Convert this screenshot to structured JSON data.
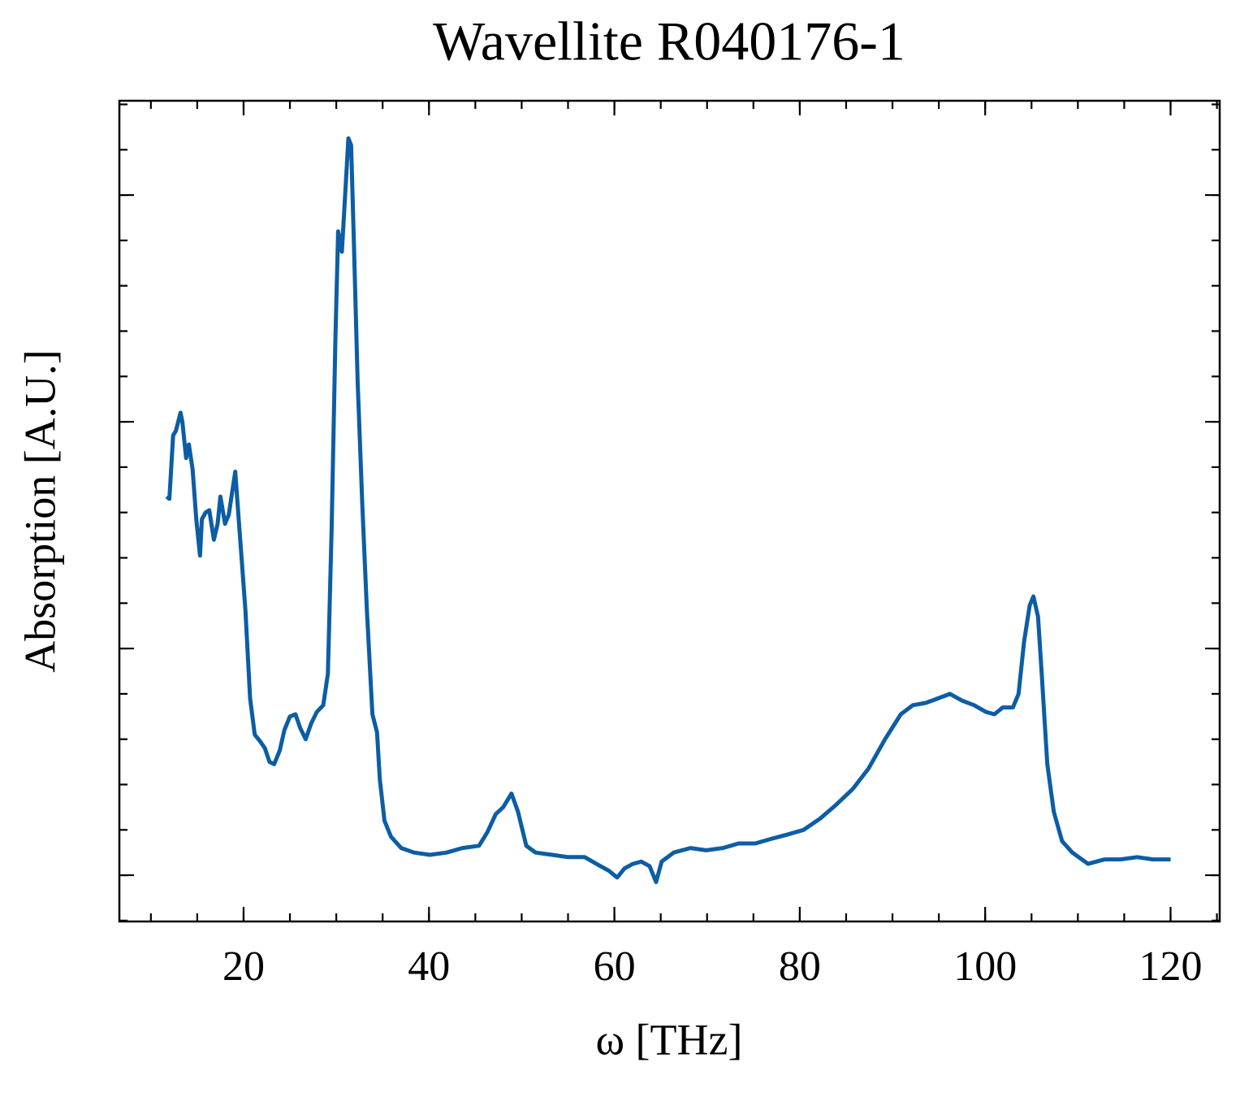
{
  "chart_data": {
    "type": "line",
    "title": "Wavellite R040176-1",
    "x_label": "ω [THz]",
    "y_label": "Absorption [A.U.]",
    "color": "#0c5da5",
    "xlim": [
      6.6,
      125.3
    ],
    "xticks": [
      20,
      40,
      60,
      80,
      100,
      120
    ],
    "xminor": 5,
    "ylim": [
      -0.204,
      3.416
    ],
    "yticks": [
      0,
      1,
      2,
      3
    ],
    "yminor": 0.2,
    "x": [
      11.7,
      12.0,
      12.4,
      12.7,
      13.2,
      13.4,
      13.8,
      14.1,
      14.5,
      14.9,
      15.3,
      15.5,
      15.9,
      16.3,
      16.8,
      17.2,
      17.5,
      18.0,
      18.4,
      19.1,
      19.6,
      20.2,
      20.7,
      21.2,
      21.8,
      22.3,
      22.8,
      23.3,
      23.9,
      24.4,
      25.0,
      25.6,
      26.1,
      26.7,
      27.3,
      27.9,
      28.6,
      29.1,
      29.5,
      29.9,
      30.2,
      30.6,
      30.9,
      31.3,
      31.6,
      31.9,
      32.3,
      32.8,
      33.3,
      33.9,
      34.4,
      34.7,
      35.2,
      35.9,
      37.0,
      38.4,
      40.1,
      41.9,
      43.6,
      45.4,
      46.3,
      47.2,
      48.0,
      48.9,
      49.6,
      50.5,
      51.5,
      53.3,
      55.0,
      56.8,
      58.5,
      59.4,
      60.3,
      61.1,
      62.0,
      62.9,
      63.8,
      64.5,
      65.1,
      66.4,
      68.2,
      69.9,
      71.7,
      73.4,
      75.2,
      76.9,
      78.7,
      80.4,
      82.2,
      83.9,
      85.7,
      87.4,
      89.2,
      90.9,
      92.2,
      93.6,
      94.9,
      96.2,
      97.5,
      98.8,
      100.1,
      101.0,
      101.9,
      103.0,
      103.6,
      104.2,
      104.8,
      105.2,
      105.7,
      106.1,
      106.7,
      107.4,
      108.3,
      109.4,
      111.1,
      112.9,
      114.6,
      116.4,
      118.1,
      120.0
    ],
    "values": [
      1.67,
      1.66,
      1.94,
      1.96,
      2.04,
      2.0,
      1.84,
      1.9,
      1.79,
      1.57,
      1.41,
      1.57,
      1.6,
      1.61,
      1.48,
      1.55,
      1.67,
      1.55,
      1.59,
      1.78,
      1.5,
      1.17,
      0.78,
      0.62,
      0.59,
      0.56,
      0.5,
      0.49,
      0.55,
      0.64,
      0.7,
      0.71,
      0.65,
      0.6,
      0.67,
      0.72,
      0.75,
      0.89,
      1.53,
      2.36,
      2.84,
      2.75,
      2.96,
      3.25,
      3.22,
      2.79,
      2.18,
      1.64,
      1.17,
      0.71,
      0.63,
      0.42,
      0.24,
      0.17,
      0.12,
      0.1,
      0.09,
      0.1,
      0.12,
      0.13,
      0.19,
      0.27,
      0.3,
      0.36,
      0.28,
      0.13,
      0.1,
      0.09,
      0.08,
      0.08,
      0.04,
      0.02,
      -0.01,
      0.03,
      0.05,
      0.06,
      0.04,
      -0.03,
      0.06,
      0.1,
      0.12,
      0.11,
      0.12,
      0.14,
      0.14,
      0.16,
      0.18,
      0.2,
      0.25,
      0.31,
      0.38,
      0.47,
      0.6,
      0.71,
      0.75,
      0.76,
      0.78,
      0.8,
      0.77,
      0.75,
      0.72,
      0.71,
      0.74,
      0.74,
      0.8,
      1.03,
      1.19,
      1.23,
      1.14,
      0.89,
      0.49,
      0.28,
      0.15,
      0.1,
      0.05,
      0.07,
      0.07,
      0.08,
      0.07,
      0.07
    ]
  }
}
